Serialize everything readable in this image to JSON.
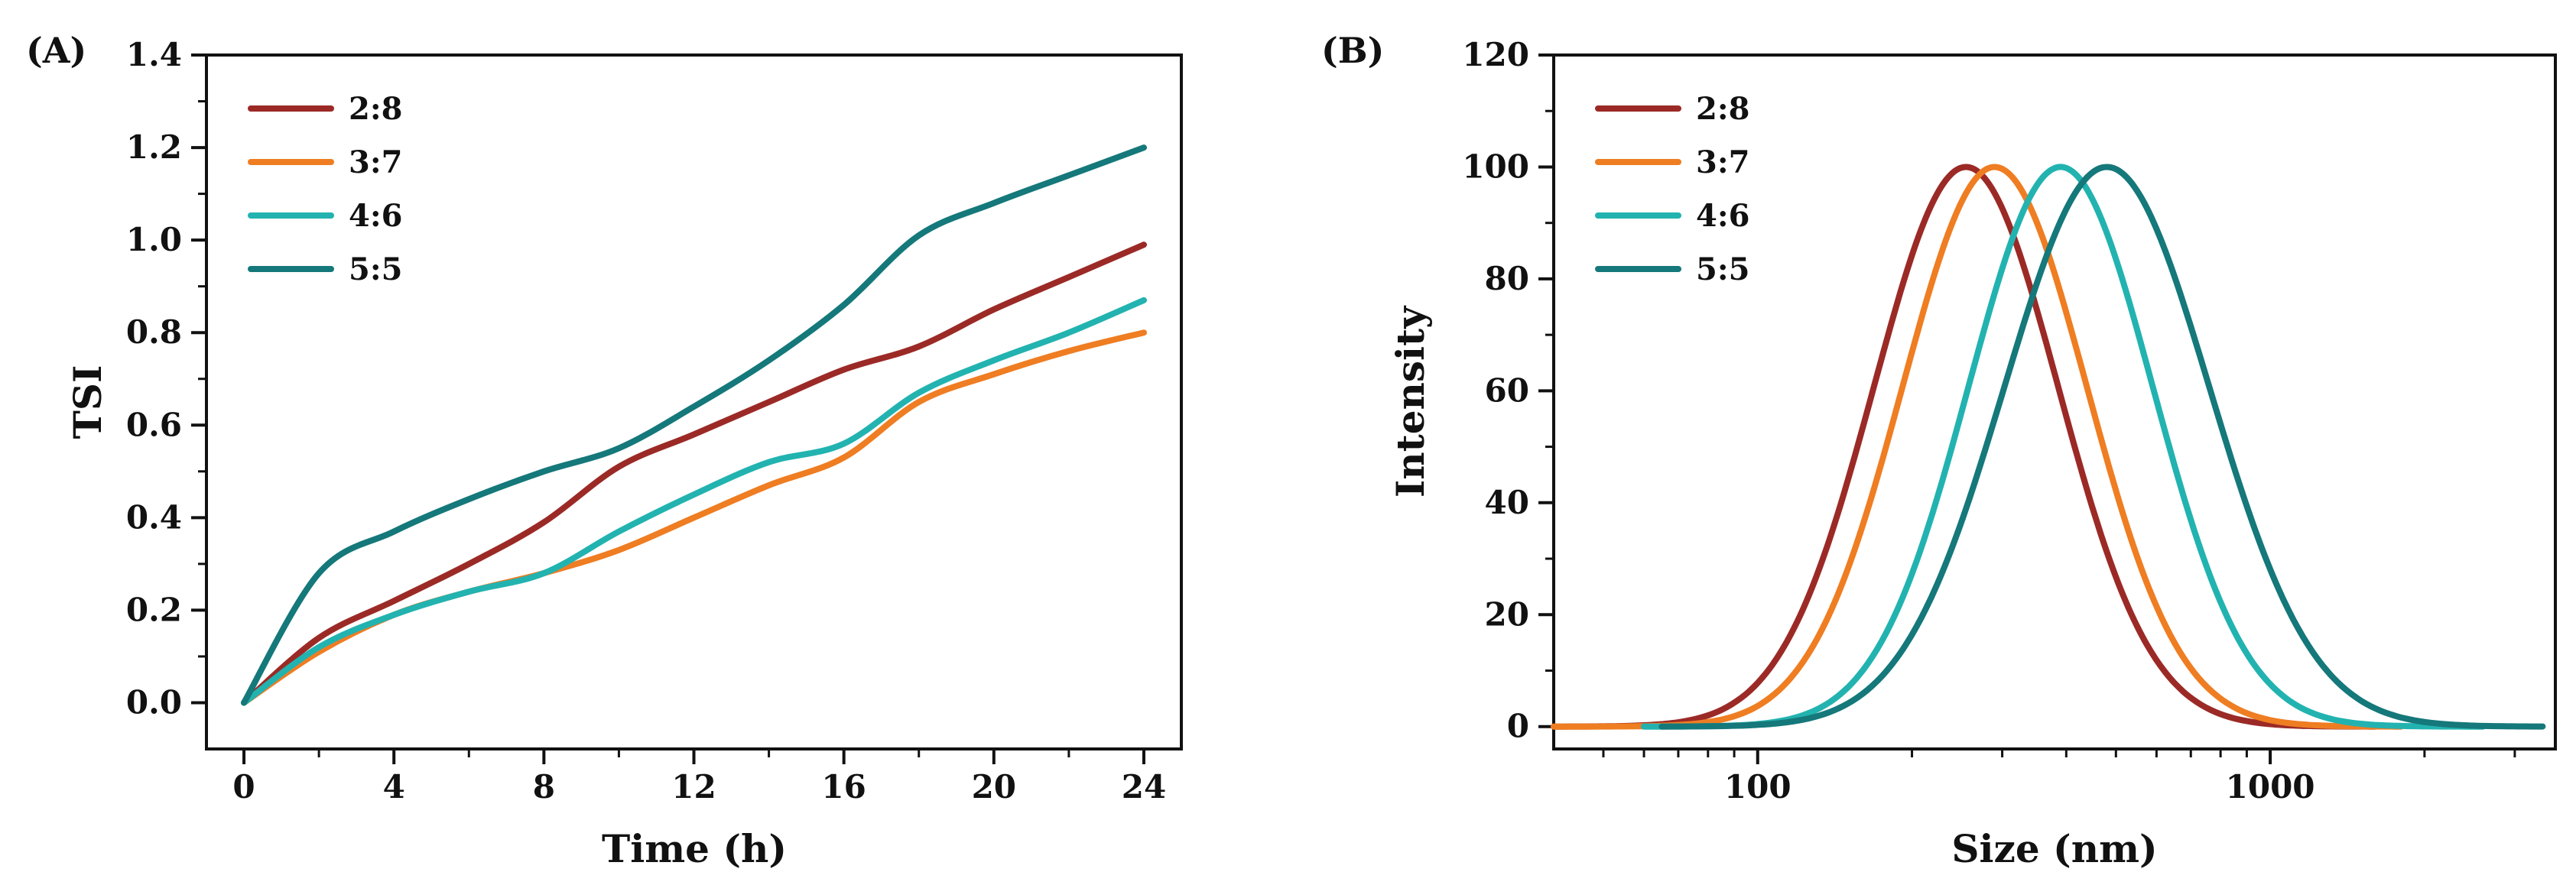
{
  "chart_data": [
    {
      "id": "A",
      "panel_label": "(A)",
      "type": "line",
      "xlabel": "Time (h)",
      "ylabel": "TSI",
      "xlim": [
        -1,
        25
      ],
      "ylim": [
        -0.1,
        1.4
      ],
      "xscale": "linear",
      "xticks": [
        0,
        4,
        8,
        12,
        16,
        20,
        24
      ],
      "xtick_labels": [
        "0",
        "4",
        "8",
        "12",
        "16",
        "20",
        "24"
      ],
      "yticks": [
        0.0,
        0.2,
        0.4,
        0.6,
        0.8,
        1.0,
        1.2,
        1.4
      ],
      "ytick_labels": [
        "0.0",
        "0.2",
        "0.4",
        "0.6",
        "0.8",
        "1.0",
        "1.2",
        "1.4"
      ],
      "legend_position": "top-left",
      "series": [
        {
          "name": "2:8",
          "color": "#9b2a26",
          "x": [
            0,
            2,
            4,
            6,
            8,
            10,
            12,
            14,
            16,
            18,
            20,
            22,
            24
          ],
          "y": [
            0,
            0.14,
            0.22,
            0.3,
            0.39,
            0.51,
            0.58,
            0.65,
            0.72,
            0.77,
            0.85,
            0.92,
            0.99
          ]
        },
        {
          "name": "3:7",
          "color": "#ef7d22",
          "x": [
            0,
            2,
            4,
            6,
            8,
            10,
            12,
            14,
            16,
            18,
            20,
            22,
            24
          ],
          "y": [
            0,
            0.11,
            0.19,
            0.24,
            0.28,
            0.33,
            0.4,
            0.47,
            0.53,
            0.65,
            0.71,
            0.76,
            0.8
          ]
        },
        {
          "name": "4:6",
          "color": "#22b3b0",
          "x": [
            0,
            2,
            4,
            6,
            8,
            10,
            12,
            14,
            16,
            18,
            20,
            22,
            24
          ],
          "y": [
            0,
            0.12,
            0.19,
            0.24,
            0.28,
            0.37,
            0.45,
            0.52,
            0.56,
            0.67,
            0.74,
            0.8,
            0.87
          ]
        },
        {
          "name": "5:5",
          "color": "#15787a",
          "x": [
            0,
            2,
            4,
            6,
            8,
            10,
            12,
            14,
            16,
            18,
            20,
            22,
            24
          ],
          "y": [
            0,
            0.28,
            0.37,
            0.44,
            0.5,
            0.55,
            0.64,
            0.74,
            0.86,
            1.01,
            1.08,
            1.14,
            1.2
          ]
        }
      ]
    },
    {
      "id": "B",
      "panel_label": "(B)",
      "type": "line",
      "xlabel": "Size (nm)",
      "ylabel": "Intensity",
      "xlim": [
        40,
        3600
      ],
      "ylim": [
        -4,
        120
      ],
      "xscale": "log",
      "xticks": [
        100,
        1000
      ],
      "xtick_labels": [
        "100",
        "1000"
      ],
      "yticks": [
        0,
        20,
        40,
        60,
        80,
        100,
        120
      ],
      "ytick_labels": [
        "0",
        "20",
        "40",
        "60",
        "80",
        "100",
        "120"
      ],
      "legend_position": "top-left",
      "series": [
        {
          "name": "2:8",
          "color": "#9b2a26",
          "peak": 255,
          "sigma_log10": 0.18,
          "range": [
            40,
            1600
          ]
        },
        {
          "name": "3:7",
          "color": "#ef7d22",
          "peak": 290,
          "sigma_log10": 0.18,
          "range": [
            40,
            1800
          ]
        },
        {
          "name": "4:6",
          "color": "#22b3b0",
          "peak": 390,
          "sigma_log10": 0.18,
          "range": [
            60,
            2600
          ]
        },
        {
          "name": "5:5",
          "color": "#15787a",
          "peak": 480,
          "sigma_log10": 0.2,
          "range": [
            65,
            3400
          ]
        }
      ]
    }
  ]
}
